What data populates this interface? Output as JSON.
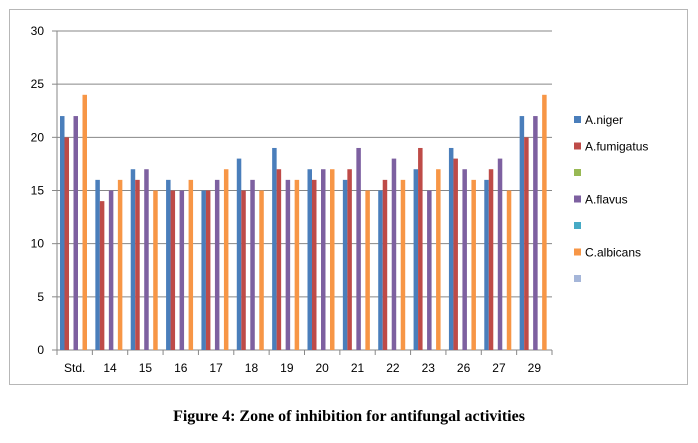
{
  "caption": "Figure 4: Zone of inhibition for antifungal activities",
  "chart_data": {
    "type": "bar",
    "title": "",
    "xlabel": "",
    "ylabel": "",
    "ylim": [
      0,
      30
    ],
    "yticks": [
      0,
      5,
      10,
      15,
      20,
      25,
      30
    ],
    "grid": "y-major",
    "legend_position": "right",
    "categories": [
      "Std.",
      "14",
      "15",
      "16",
      "17",
      "18",
      "19",
      "20",
      "21",
      "22",
      "23",
      "26",
      "27",
      "29"
    ],
    "series": [
      {
        "name": "A.niger",
        "color": "#4a7ebb",
        "values": [
          22,
          16,
          17,
          16,
          15,
          18,
          19,
          17,
          16,
          15,
          17,
          19,
          16,
          22
        ]
      },
      {
        "name": "A.fumigatus",
        "color": "#be4b48",
        "values": [
          20,
          14,
          16,
          15,
          15,
          15,
          17,
          16,
          17,
          16,
          19,
          18,
          17,
          20
        ]
      },
      {
        "name": "",
        "color": "#98b954",
        "values": [
          0,
          0,
          0,
          0,
          0,
          0,
          0,
          0,
          0,
          0,
          0,
          0,
          0,
          0
        ]
      },
      {
        "name": "A.flavus",
        "color": "#7d60a0",
        "values": [
          22,
          15,
          17,
          15,
          16,
          16,
          16,
          17,
          19,
          18,
          15,
          17,
          18,
          22
        ]
      },
      {
        "name": "",
        "color": "#46aac5",
        "values": [
          0,
          0,
          0,
          0,
          0,
          0,
          0,
          0,
          0,
          0,
          0,
          0,
          0,
          0
        ]
      },
      {
        "name": "C.albicans",
        "color": "#f79646",
        "values": [
          24,
          16,
          15,
          16,
          17,
          15,
          16,
          17,
          15,
          16,
          17,
          16,
          15,
          24
        ]
      },
      {
        "name": "",
        "color": "#a5b6d9",
        "values": [
          0,
          0,
          0,
          0,
          0,
          0,
          0,
          0,
          0,
          0,
          0,
          0,
          0,
          0
        ]
      }
    ]
  }
}
